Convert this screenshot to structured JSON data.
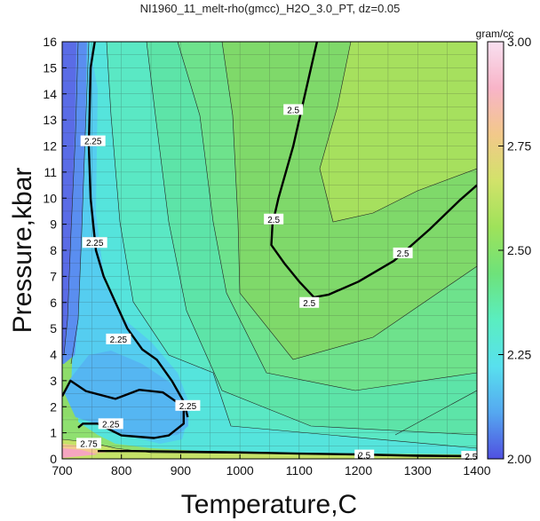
{
  "chart_data": {
    "type": "heatmap",
    "subtype": "filled contour",
    "title": "NI1960_11_melt-rho(gmcc)_H2O_3.0_PT, dz=0.05",
    "xlabel": "Temperature,C",
    "ylabel": "Pressure,kbar",
    "xlim": [
      700,
      1400
    ],
    "ylim": [
      0,
      16
    ],
    "x_ticks": [
      "700",
      "800",
      "900",
      "1000",
      "1100",
      "1200",
      "1300",
      "1400"
    ],
    "y_ticks": [
      "0",
      "1",
      "2",
      "3",
      "4",
      "5",
      "6",
      "7",
      "8",
      "9",
      "10",
      "11",
      "12",
      "13",
      "14",
      "15",
      "16"
    ],
    "grid": true,
    "colorbar": {
      "label": "gram/cc",
      "range": [
        2.0,
        3.0
      ],
      "ticks": [
        "2.00",
        "2.25",
        "2.50",
        "2.75",
        "3.00"
      ],
      "colors": [
        "#5050e0",
        "#55a8f0",
        "#58e0ee",
        "#5aeec0",
        "#6ee27a",
        "#9fe25a",
        "#d2e26a",
        "#f2c88a",
        "#f8b4c8",
        "#f8e0f0"
      ]
    },
    "contour_levels_labeled": [
      {
        "level": "2.25",
        "points": [
          [
            700,
            2.4
          ],
          [
            714,
            3.0
          ],
          [
            740,
            2.6
          ],
          [
            790,
            2.3
          ],
          [
            830,
            2.65
          ],
          [
            870,
            2.55
          ],
          [
            905,
            2.0
          ],
          [
            905,
            1.35
          ],
          [
            880,
            0.9
          ],
          [
            855,
            0.8
          ],
          [
            800,
            0.9
          ],
          [
            760,
            1.35
          ],
          [
            735,
            1.35
          ],
          [
            727,
            1.2
          ]
        ]
      },
      {
        "level": "2.25",
        "points": [
          [
            755,
            16
          ],
          [
            748,
            15
          ],
          [
            745,
            12
          ],
          [
            748,
            10
          ],
          [
            757,
            8
          ],
          [
            770,
            7
          ],
          [
            790,
            6
          ],
          [
            810,
            5
          ],
          [
            835,
            4.2
          ],
          [
            860,
            3.8
          ],
          [
            885,
            3.0
          ],
          [
            905,
            2.2
          ],
          [
            912,
            1.6
          ]
        ]
      },
      {
        "level": "2.5",
        "points": [
          [
            1130,
            16
          ],
          [
            1110,
            14
          ],
          [
            1090,
            12
          ],
          [
            1065,
            10
          ],
          [
            1055,
            9
          ],
          [
            1053,
            8.2
          ],
          [
            1075,
            7.5
          ],
          [
            1100,
            6.8
          ],
          [
            1125,
            6.2
          ],
          [
            1150,
            6.3
          ],
          [
            1200,
            6.8
          ],
          [
            1260,
            7.6
          ],
          [
            1320,
            8.8
          ],
          [
            1370,
            9.9
          ],
          [
            1400,
            10.5
          ]
        ]
      },
      {
        "level": "2.5",
        "points": [
          [
            760,
            0.3
          ],
          [
            820,
            0.3
          ],
          [
            900,
            0.28
          ],
          [
            1000,
            0.25
          ],
          [
            1100,
            0.2
          ],
          [
            1200,
            0.17
          ],
          [
            1300,
            0.12
          ],
          [
            1400,
            0.1
          ]
        ]
      }
    ],
    "labels_on_plot": [
      {
        "text": "2.25",
        "x": 752,
        "y": 12.2
      },
      {
        "text": "2.25",
        "x": 755,
        "y": 8.3
      },
      {
        "text": "2.25",
        "x": 795,
        "y": 4.6
      },
      {
        "text": "2.25",
        "x": 912,
        "y": 2.05
      },
      {
        "text": "2.25",
        "x": 782,
        "y": 1.35
      },
      {
        "text": "2.5",
        "x": 1090,
        "y": 13.4
      },
      {
        "text": "2.5",
        "x": 1057,
        "y": 9.2
      },
      {
        "text": "2.5",
        "x": 1117,
        "y": 6.0
      },
      {
        "text": "2.5",
        "x": 1275,
        "y": 7.9
      },
      {
        "text": "2.5",
        "x": 1210,
        "y": 0.15
      },
      {
        "text": "2.5",
        "x": 1390,
        "y": 0.1
      },
      {
        "text": "2.75",
        "x": 745,
        "y": 0.6
      }
    ]
  }
}
